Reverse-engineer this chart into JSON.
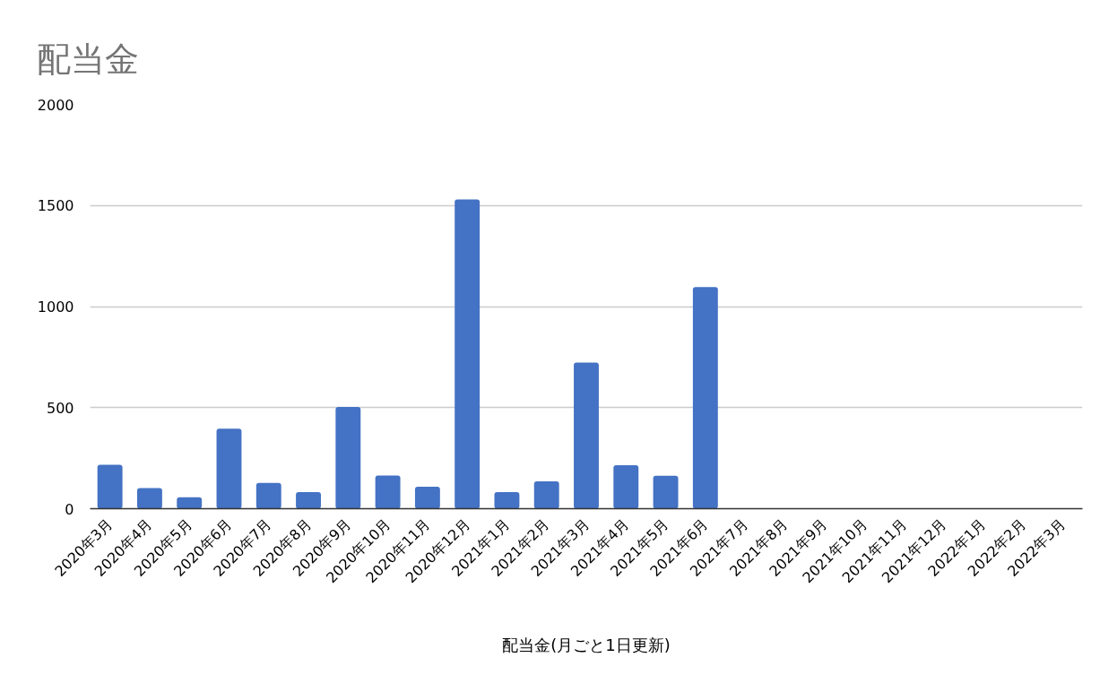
{
  "chart_data": {
    "type": "bar",
    "title": "配当金",
    "xlabel": "配当金(月ごと1日更新)",
    "categories": [
      "2020年3月",
      "2020年4月",
      "2020年5月",
      "2020年6月",
      "2020年7月",
      "2020年8月",
      "2020年9月",
      "2020年10月",
      "2020年11月",
      "2020年12月",
      "2021年1月",
      "2021年2月",
      "2021年3月",
      "2021年4月",
      "2021年5月",
      "2021年6月",
      "2021年7月",
      "2021年8月",
      "2021年9月",
      "2021年10月",
      "2021年11月",
      "2021年12月",
      "2022年1月",
      "2022年2月",
      "2022年3月"
    ],
    "values": [
      217,
      102,
      57,
      396,
      127,
      82,
      503,
      164,
      109,
      1530,
      82,
      135,
      723,
      215,
      163,
      1096,
      null,
      null,
      null,
      null,
      null,
      null,
      null,
      null,
      null
    ],
    "color": "#4472c4",
    "ylim": [
      0,
      2000
    ],
    "yticks": [
      0,
      500,
      1000,
      1500,
      2000
    ],
    "grid": "y"
  }
}
